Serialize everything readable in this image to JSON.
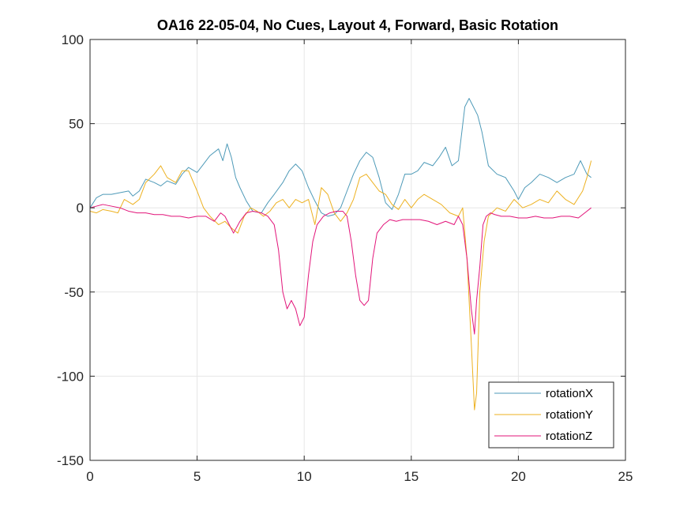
{
  "chart_data": {
    "type": "line",
    "title": "OA16 22-05-04, No Cues, Layout 4, Forward, Basic Rotation",
    "xlabel": "",
    "ylabel": "",
    "xlim": [
      0,
      25
    ],
    "ylim": [
      -150,
      100
    ],
    "xticks": [
      0,
      5,
      10,
      15,
      20,
      25
    ],
    "yticks": [
      -150,
      -100,
      -50,
      0,
      50,
      100
    ],
    "xtick_labels": [
      "0",
      "5",
      "10",
      "15",
      "20",
      "25"
    ],
    "ytick_labels": [
      "-150",
      "-100",
      "-50",
      "0",
      "50",
      "100"
    ],
    "grid": true,
    "legend_position": "bottom-right",
    "series": [
      {
        "name": "rotationX",
        "color": "#4E9AB8",
        "x": [
          0,
          0.3,
          0.6,
          1,
          1.4,
          1.8,
          2,
          2.3,
          2.6,
          3,
          3.3,
          3.6,
          4,
          4.3,
          4.6,
          5,
          5.3,
          5.6,
          6,
          6.2,
          6.4,
          6.6,
          6.8,
          7,
          7.3,
          7.6,
          8,
          8.3,
          8.6,
          9,
          9.3,
          9.6,
          9.9,
          10.2,
          10.5,
          10.8,
          11.1,
          11.4,
          11.7,
          12,
          12.3,
          12.6,
          12.9,
          13.2,
          13.5,
          13.8,
          14.1,
          14.4,
          14.7,
          15,
          15.3,
          15.6,
          16,
          16.3,
          16.6,
          16.9,
          17.2,
          17.5,
          17.7,
          17.9,
          18.1,
          18.3,
          18.6,
          19,
          19.4,
          19.8,
          20,
          20.3,
          20.6,
          21,
          21.4,
          21.8,
          22.2,
          22.6,
          22.9,
          23.2,
          23.4
        ],
        "values": [
          0,
          6,
          8,
          8,
          9,
          10,
          7,
          10,
          17,
          15,
          13,
          16,
          14,
          20,
          24,
          21,
          26,
          31,
          35,
          28,
          38,
          30,
          18,
          12,
          4,
          -2,
          -3,
          3,
          8,
          15,
          22,
          26,
          22,
          12,
          4,
          -3,
          -5,
          -4,
          0,
          10,
          20,
          28,
          33,
          30,
          18,
          3,
          -1,
          8,
          20,
          20,
          22,
          27,
          25,
          30,
          36,
          25,
          28,
          60,
          65,
          60,
          55,
          45,
          25,
          20,
          18,
          10,
          5,
          12,
          15,
          20,
          18,
          15,
          18,
          20,
          28,
          20,
          18
        ]
      },
      {
        "name": "rotationY",
        "color": "#EDB120",
        "x": [
          0,
          0.3,
          0.6,
          1,
          1.3,
          1.6,
          2,
          2.3,
          2.6,
          3,
          3.3,
          3.6,
          4,
          4.3,
          4.6,
          5,
          5.3,
          5.6,
          6,
          6.3,
          6.6,
          6.9,
          7.2,
          7.5,
          7.8,
          8.1,
          8.4,
          8.7,
          9,
          9.3,
          9.6,
          9.9,
          10.2,
          10.5,
          10.8,
          11.1,
          11.4,
          11.7,
          12,
          12.3,
          12.6,
          12.9,
          13.2,
          13.5,
          13.8,
          14.1,
          14.4,
          14.7,
          15,
          15.3,
          15.6,
          16,
          16.4,
          16.8,
          17.2,
          17.4,
          17.6,
          17.8,
          17.95,
          18.05,
          18.2,
          18.4,
          18.6,
          19,
          19.4,
          19.8,
          20.2,
          20.6,
          21,
          21.4,
          21.8,
          22.2,
          22.6,
          23,
          23.2,
          23.4
        ],
        "values": [
          -2,
          -3,
          -1,
          -2,
          -3,
          5,
          2,
          5,
          15,
          20,
          25,
          18,
          15,
          22,
          22,
          10,
          0,
          -5,
          -10,
          -8,
          -12,
          -15,
          -5,
          0,
          -2,
          -5,
          -2,
          3,
          5,
          0,
          5,
          3,
          5,
          -10,
          12,
          8,
          -3,
          -8,
          -3,
          5,
          18,
          20,
          15,
          10,
          8,
          2,
          -1,
          5,
          0,
          5,
          8,
          5,
          2,
          -3,
          -5,
          0,
          -30,
          -80,
          -120,
          -110,
          -50,
          -20,
          -5,
          0,
          -2,
          5,
          0,
          2,
          5,
          3,
          10,
          5,
          2,
          10,
          18,
          28
        ]
      },
      {
        "name": "rotationZ",
        "color": "#E2157A",
        "x": [
          0,
          0.3,
          0.6,
          1,
          1.4,
          1.8,
          2.2,
          2.6,
          3,
          3.4,
          3.8,
          4.2,
          4.6,
          5,
          5.4,
          5.8,
          6.1,
          6.3,
          6.5,
          6.7,
          7,
          7.3,
          7.6,
          8,
          8.3,
          8.6,
          8.8,
          9,
          9.2,
          9.4,
          9.6,
          9.8,
          10,
          10.2,
          10.4,
          10.6,
          10.9,
          11.2,
          11.5,
          11.8,
          12,
          12.2,
          12.4,
          12.6,
          12.8,
          13,
          13.2,
          13.4,
          13.7,
          14,
          14.3,
          14.6,
          15,
          15.4,
          15.8,
          16.2,
          16.6,
          17,
          17.2,
          17.4,
          17.6,
          17.8,
          17.95,
          18.05,
          18.2,
          18.35,
          18.5,
          18.7,
          18.9,
          19.2,
          19.6,
          20,
          20.4,
          20.8,
          21.2,
          21.6,
          22,
          22.4,
          22.8,
          23.2,
          23.4
        ],
        "values": [
          0,
          1,
          2,
          1,
          0,
          -2,
          -3,
          -3,
          -4,
          -4,
          -5,
          -5,
          -6,
          -5,
          -5,
          -8,
          -3,
          -5,
          -10,
          -15,
          -8,
          -3,
          -2,
          -3,
          -5,
          -10,
          -25,
          -50,
          -60,
          -55,
          -60,
          -70,
          -65,
          -40,
          -20,
          -10,
          -5,
          -3,
          -2,
          -2,
          -5,
          -20,
          -40,
          -55,
          -58,
          -55,
          -30,
          -15,
          -10,
          -7,
          -8,
          -7,
          -7,
          -7,
          -8,
          -10,
          -8,
          -10,
          -5,
          -10,
          -30,
          -60,
          -75,
          -55,
          -35,
          -10,
          -5,
          -3,
          -4,
          -5,
          -5,
          -6,
          -6,
          -5,
          -6,
          -6,
          -5,
          -5,
          -6,
          -2,
          0
        ]
      }
    ]
  }
}
